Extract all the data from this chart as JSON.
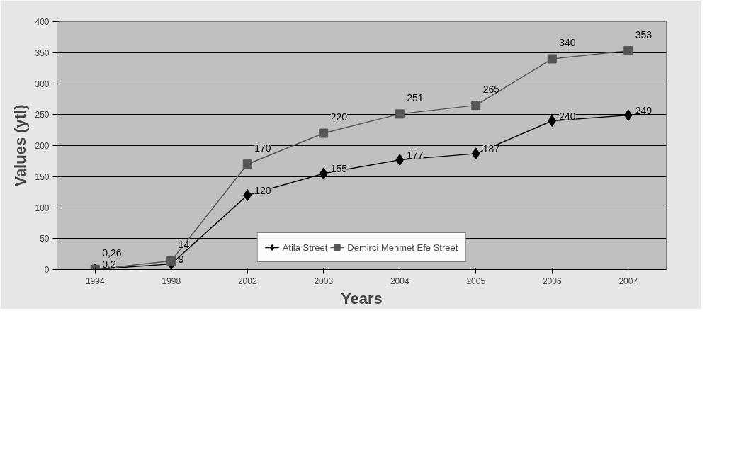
{
  "chart_data": {
    "type": "line",
    "xlabel": "Years",
    "ylabel": "Values (ytl)",
    "categories": [
      "1994",
      "1998",
      "2002",
      "2003",
      "2004",
      "2005",
      "2006",
      "2007"
    ],
    "series": [
      {
        "name": "Atila Street",
        "color": "#000000",
        "marker": "diamond",
        "values": [
          0.2,
          9,
          120,
          155,
          177,
          187,
          240,
          249
        ],
        "value_labels": [
          "0,2",
          "9",
          "120",
          "155",
          "177",
          "187",
          "240",
          "249"
        ]
      },
      {
        "name": "Demirci Mehmet Efe Street",
        "color": "#555555",
        "marker": "square",
        "values": [
          0.26,
          14,
          170,
          220,
          251,
          265,
          340,
          353
        ],
        "value_labels": [
          "0,26",
          "14",
          "170",
          "220",
          "251",
          "265",
          "340",
          "353"
        ]
      }
    ],
    "ylim": [
      0,
      400
    ],
    "yticks": [
      0,
      50,
      100,
      150,
      200,
      250,
      300,
      350,
      400
    ],
    "grid": "y",
    "legend": "bottom",
    "line_style": "solid"
  }
}
